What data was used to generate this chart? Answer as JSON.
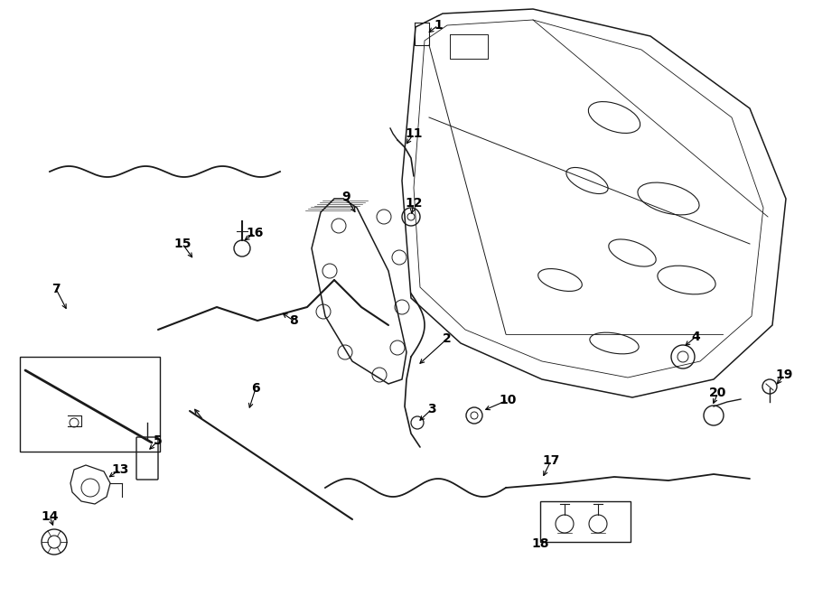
{
  "background": "#ffffff",
  "figsize": [
    9.0,
    6.61
  ],
  "dpi": 100,
  "xlim": [
    0,
    900
  ],
  "ylim": [
    0,
    661
  ],
  "gray": "#1a1a1a"
}
